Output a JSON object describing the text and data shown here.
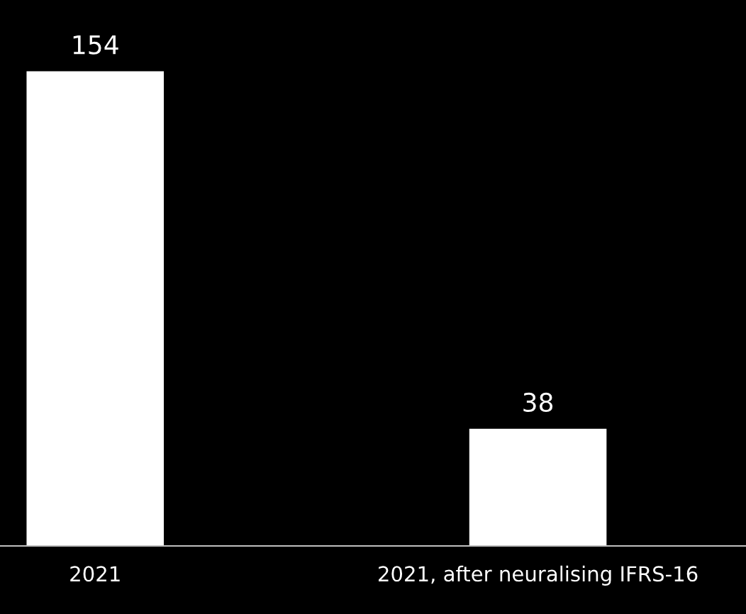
{
  "chart_data": {
    "type": "bar",
    "categories": [
      "2021",
      "2021, after neuralising IFRS-16"
    ],
    "values": [
      154,
      38
    ],
    "color": "#ffffff",
    "data_labels": true,
    "grid": false,
    "legend": false
  }
}
